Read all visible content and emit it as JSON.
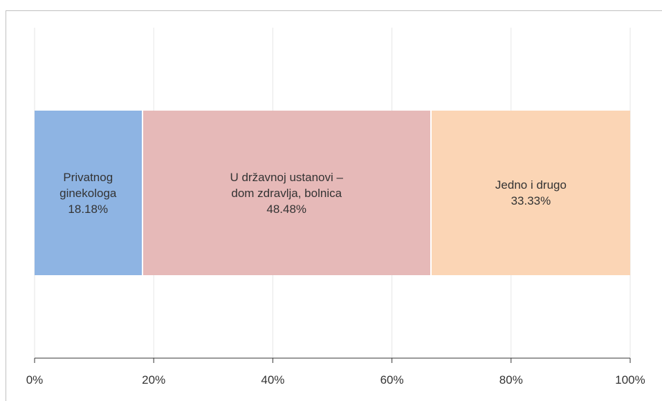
{
  "chart_data": {
    "type": "stacked-bar-horizontal",
    "series": [
      {
        "name": "Privatnog ginekologa",
        "color": "#8eb4e3",
        "values": [
          18.18
        ],
        "value_labels": [
          "18.18%"
        ]
      },
      {
        "name": "U državnoj ustanovi – dom zdravlja, bolnica",
        "color": "#e6b9b8",
        "values": [
          48.48
        ],
        "value_labels": [
          "48.48%"
        ]
      },
      {
        "name": "Jedno i drugo",
        "color": "#fbd5b5",
        "values": [
          33.33
        ],
        "value_labels": [
          "33.33%"
        ]
      }
    ],
    "xlim": [
      0,
      100
    ],
    "xticks": [
      {
        "value": 0,
        "label": "0%"
      },
      {
        "value": 20,
        "label": "20%"
      },
      {
        "value": 40,
        "label": "40%"
      },
      {
        "value": 60,
        "label": "60%"
      },
      {
        "value": 80,
        "label": "80%"
      },
      {
        "value": 100,
        "label": "100%"
      }
    ],
    "grid": true
  }
}
